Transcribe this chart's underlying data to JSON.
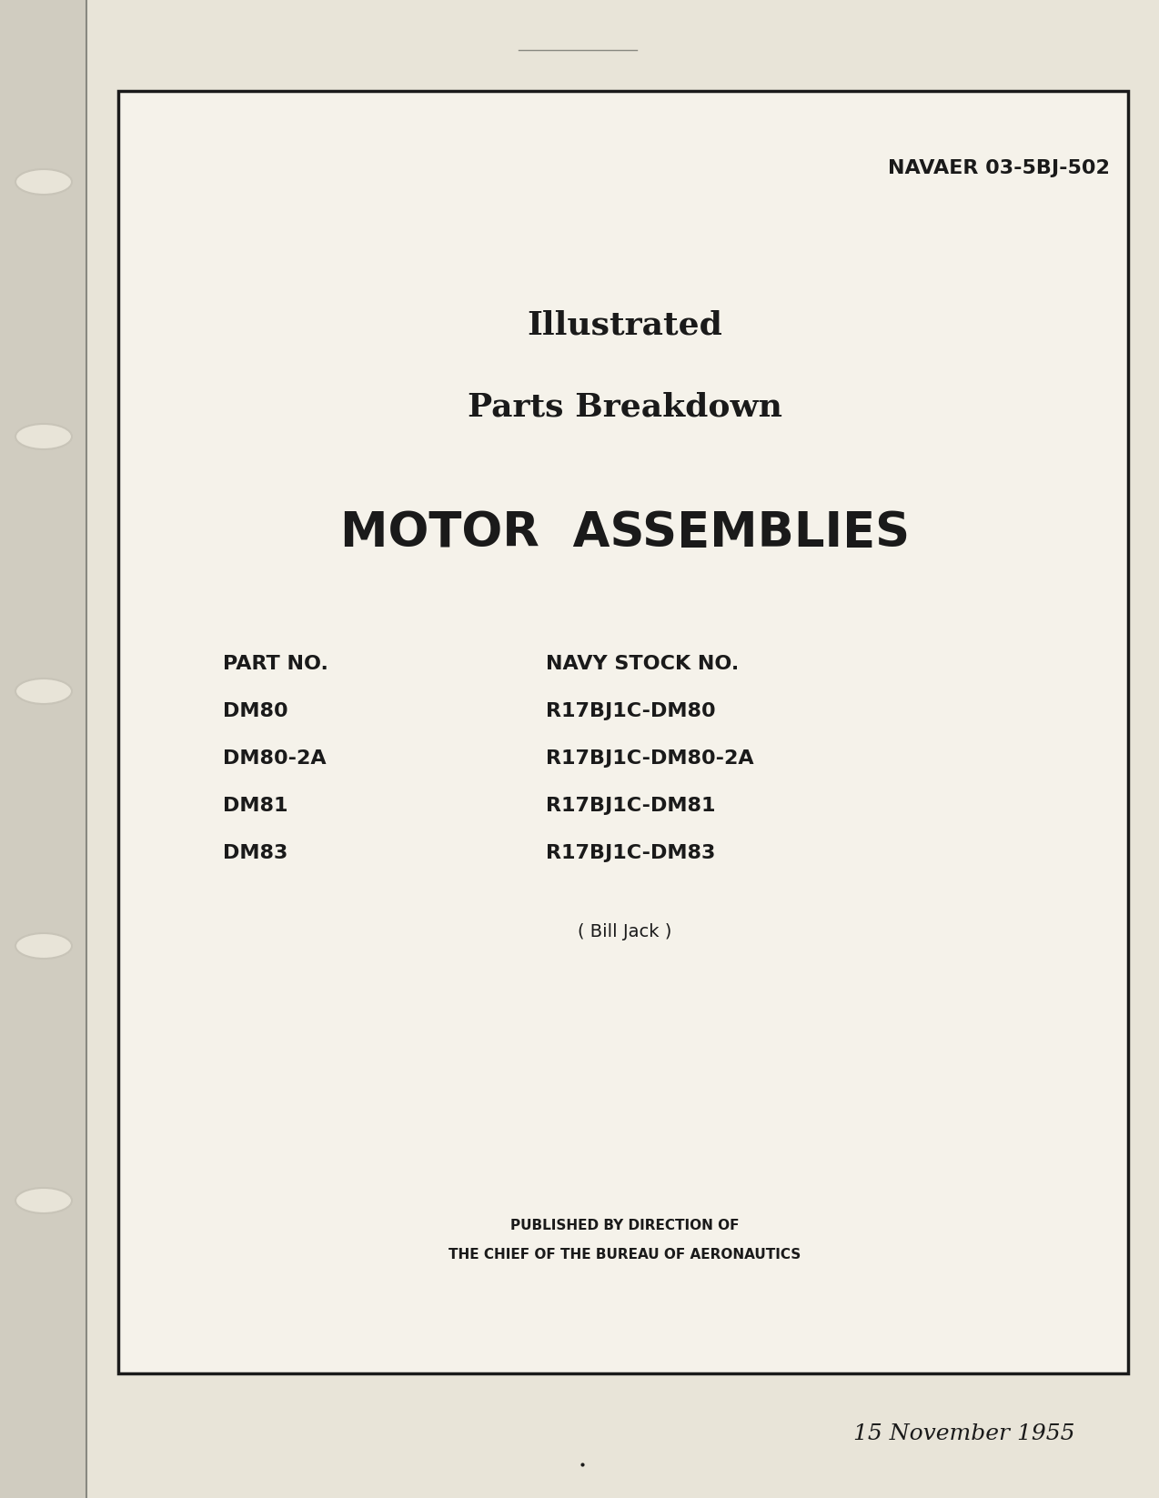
{
  "page_bg": "#e8e4d8",
  "inner_bg": "#f5f2ea",
  "doc_number": "NAVAER 03-5BJ-502",
  "title_line1": "Illustrated",
  "title_line2": "Parts Breakdown",
  "main_title": "MOTOR  ASSEMBLIES",
  "col1_header": "PART NO.",
  "col2_header": "NAVY STOCK NO.",
  "part_numbers": [
    "DM80",
    "DM80-2A",
    "DM81",
    "DM83"
  ],
  "stock_numbers": [
    "R17BJ1C-DM80",
    "R17BJ1C-DM80-2A",
    "R17BJ1C-DM81",
    "R17BJ1C-DM83"
  ],
  "bill_jack": "( Bill Jack )",
  "pub_line1": "PUBLISHED BY DIRECTION OF",
  "pub_line2": "THE CHIEF OF THE BUREAU OF AERONAUTICS",
  "date_line": "15 November 1955",
  "text_color": "#1a1a1a",
  "border_color": "#1a1a1a",
  "ring_color": "#c8c4b8",
  "spine_color": "#d0ccc0",
  "page_line_color": "#888880"
}
